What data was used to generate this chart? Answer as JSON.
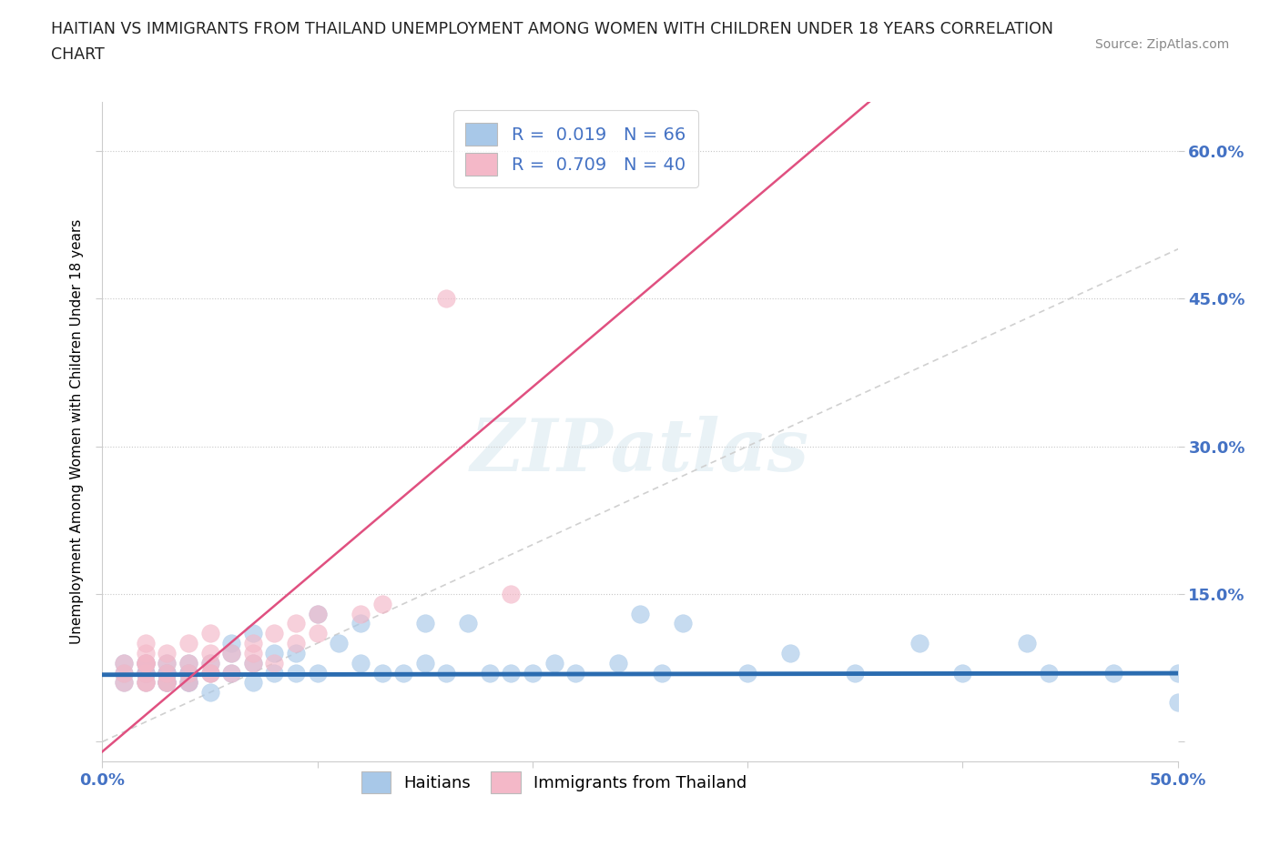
{
  "title_line1": "HAITIAN VS IMMIGRANTS FROM THAILAND UNEMPLOYMENT AMONG WOMEN WITH CHILDREN UNDER 18 YEARS CORRELATION",
  "title_line2": "CHART",
  "source": "Source: ZipAtlas.com",
  "ylabel": "Unemployment Among Women with Children Under 18 years",
  "xlim": [
    0.0,
    0.5
  ],
  "ylim": [
    -0.02,
    0.65
  ],
  "xticks": [
    0.0,
    0.1,
    0.2,
    0.3,
    0.4,
    0.5
  ],
  "yticks": [
    0.0,
    0.15,
    0.3,
    0.45,
    0.6
  ],
  "ytick_labels": [
    "",
    "15.0%",
    "30.0%",
    "45.0%",
    "60.0%"
  ],
  "xtick_labels": [
    "0.0%",
    "",
    "",
    "",
    "",
    "50.0%"
  ],
  "grid_color": "#c8c8c8",
  "background_color": "#ffffff",
  "blue_color": "#a8c8e8",
  "pink_color": "#f4b8c8",
  "blue_line_color": "#2b6cb0",
  "pink_line_color": "#e05080",
  "diag_line_color": "#d0d0d0",
  "legend_R1": "R =  0.019",
  "legend_N1": "N = 66",
  "legend_R2": "R =  0.709",
  "legend_N2": "N = 40",
  "label1": "Haitians",
  "label2": "Immigrants from Thailand",
  "watermark": "ZIPatlas",
  "title_color": "#222222",
  "tick_label_color": "#4472c4",
  "blue_line_slope": 0.003,
  "blue_line_intercept": 0.068,
  "pink_line_slope": 1.85,
  "pink_line_intercept": -0.01,
  "blue_scatter_x": [
    0.01,
    0.01,
    0.01,
    0.02,
    0.02,
    0.02,
    0.02,
    0.02,
    0.02,
    0.03,
    0.03,
    0.03,
    0.03,
    0.03,
    0.03,
    0.03,
    0.03,
    0.04,
    0.04,
    0.04,
    0.04,
    0.04,
    0.04,
    0.05,
    0.05,
    0.05,
    0.06,
    0.06,
    0.06,
    0.07,
    0.07,
    0.07,
    0.08,
    0.08,
    0.09,
    0.09,
    0.1,
    0.1,
    0.11,
    0.12,
    0.12,
    0.13,
    0.14,
    0.15,
    0.15,
    0.16,
    0.17,
    0.18,
    0.19,
    0.2,
    0.21,
    0.22,
    0.24,
    0.25,
    0.26,
    0.27,
    0.3,
    0.32,
    0.35,
    0.38,
    0.4,
    0.43,
    0.44,
    0.47,
    0.5,
    0.5
  ],
  "blue_scatter_y": [
    0.07,
    0.08,
    0.06,
    0.07,
    0.08,
    0.07,
    0.06,
    0.07,
    0.08,
    0.06,
    0.07,
    0.07,
    0.07,
    0.06,
    0.08,
    0.07,
    0.06,
    0.07,
    0.07,
    0.06,
    0.08,
    0.07,
    0.06,
    0.05,
    0.07,
    0.08,
    0.09,
    0.1,
    0.07,
    0.06,
    0.08,
    0.11,
    0.09,
    0.07,
    0.07,
    0.09,
    0.07,
    0.13,
    0.1,
    0.08,
    0.12,
    0.07,
    0.07,
    0.08,
    0.12,
    0.07,
    0.12,
    0.07,
    0.07,
    0.07,
    0.08,
    0.07,
    0.08,
    0.13,
    0.07,
    0.12,
    0.07,
    0.09,
    0.07,
    0.1,
    0.07,
    0.1,
    0.07,
    0.07,
    0.07,
    0.04
  ],
  "pink_scatter_x": [
    0.01,
    0.01,
    0.01,
    0.02,
    0.02,
    0.02,
    0.02,
    0.02,
    0.02,
    0.02,
    0.02,
    0.03,
    0.03,
    0.03,
    0.03,
    0.03,
    0.04,
    0.04,
    0.04,
    0.04,
    0.05,
    0.05,
    0.05,
    0.05,
    0.05,
    0.06,
    0.06,
    0.07,
    0.07,
    0.07,
    0.08,
    0.08,
    0.09,
    0.09,
    0.1,
    0.1,
    0.12,
    0.13,
    0.16,
    0.19
  ],
  "pink_scatter_y": [
    0.06,
    0.07,
    0.08,
    0.06,
    0.06,
    0.07,
    0.08,
    0.08,
    0.08,
    0.09,
    0.1,
    0.06,
    0.06,
    0.07,
    0.08,
    0.09,
    0.06,
    0.07,
    0.08,
    0.1,
    0.07,
    0.07,
    0.08,
    0.09,
    0.11,
    0.07,
    0.09,
    0.08,
    0.09,
    0.1,
    0.08,
    0.11,
    0.1,
    0.12,
    0.11,
    0.13,
    0.13,
    0.14,
    0.45,
    0.15
  ]
}
